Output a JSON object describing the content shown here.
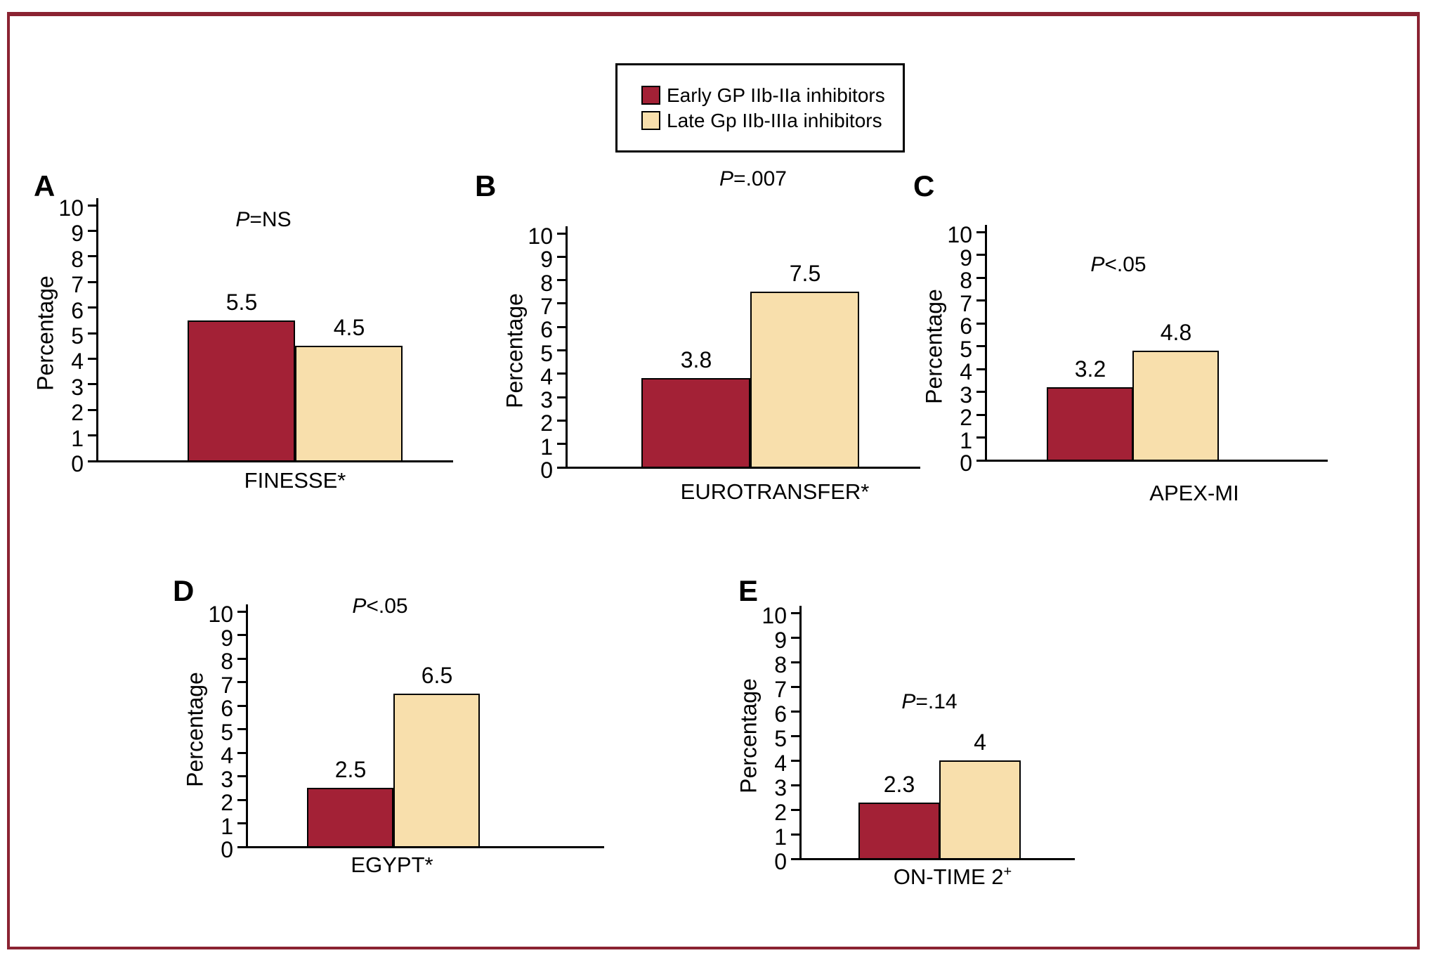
{
  "figure": {
    "frame_color": "#8B2332",
    "background": "#FFFFFF",
    "ylabel": "Percentage"
  },
  "legend": {
    "position": "top-center",
    "items": [
      {
        "label": "Early GP IIb-IIa inhibitors",
        "color": "#A32136",
        "series": "early"
      },
      {
        "label": "Late Gp IIb-IIIa inhibitors",
        "color": "#F8DFAC",
        "series": "late"
      }
    ]
  },
  "chart_data": [
    {
      "type": "bar",
      "panel": "A",
      "p_value_label": "P=NS",
      "categories": [
        "Early GP IIb-IIa inhibitors",
        "Late Gp IIb-IIIa inhibitors"
      ],
      "values": [
        5.5,
        4.5
      ],
      "bar_labels": [
        "5.5",
        "4.5"
      ],
      "xlabel": "FINESSE*",
      "xlabel_sup": "",
      "ylabel": "Percentage",
      "ylim": [
        0,
        10
      ],
      "yticks": [
        0,
        1,
        2,
        3,
        4,
        5,
        6,
        7,
        8,
        9,
        10
      ],
      "grid": false,
      "legend_position": "none"
    },
    {
      "type": "bar",
      "panel": "B",
      "p_value_label": "P=.007",
      "categories": [
        "Early GP IIb-IIa inhibitors",
        "Late Gp IIb-IIIa inhibitors"
      ],
      "values": [
        3.8,
        7.5
      ],
      "bar_labels": [
        "3.8",
        "7.5"
      ],
      "xlabel": "EUROTRANSFER*",
      "xlabel_sup": "",
      "ylabel": "Percentage",
      "ylim": [
        0,
        10
      ],
      "yticks": [
        0,
        1,
        2,
        3,
        4,
        5,
        6,
        7,
        8,
        9,
        10
      ],
      "grid": false,
      "legend_position": "none"
    },
    {
      "type": "bar",
      "panel": "C",
      "p_value_label": "P<.05",
      "categories": [
        "Early GP IIb-IIa inhibitors",
        "Late Gp IIb-IIIa inhibitors"
      ],
      "values": [
        3.2,
        4.8
      ],
      "bar_labels": [
        "3.2",
        "4.8"
      ],
      "xlabel": "APEX-MI",
      "xlabel_sup": "",
      "ylabel": "Percentage",
      "ylim": [
        0,
        10
      ],
      "yticks": [
        0,
        1,
        2,
        3,
        4,
        5,
        6,
        7,
        8,
        9,
        10
      ],
      "grid": false,
      "legend_position": "none"
    },
    {
      "type": "bar",
      "panel": "D",
      "p_value_label": "P<.05",
      "categories": [
        "Early GP IIb-IIa inhibitors",
        "Late Gp IIb-IIIa inhibitors"
      ],
      "values": [
        2.5,
        6.5
      ],
      "bar_labels": [
        "2.5",
        "6.5"
      ],
      "xlabel": "EGYPT*",
      "xlabel_sup": "",
      "ylabel": "Percentage",
      "ylim": [
        0,
        10
      ],
      "yticks": [
        0,
        1,
        2,
        3,
        4,
        5,
        6,
        7,
        8,
        9,
        10
      ],
      "grid": false,
      "legend_position": "none"
    },
    {
      "type": "bar",
      "panel": "E",
      "p_value_label": "P=.14",
      "categories": [
        "Early GP IIb-IIa inhibitors",
        "Late Gp IIb-IIIa inhibitors"
      ],
      "values": [
        2.3,
        4
      ],
      "bar_labels": [
        "2.3",
        "4"
      ],
      "xlabel": "ON-TIME 2",
      "xlabel_sup": "+",
      "ylabel": "Percentage",
      "ylim": [
        0,
        10
      ],
      "yticks": [
        0,
        1,
        2,
        3,
        4,
        5,
        6,
        7,
        8,
        9,
        10
      ],
      "grid": false,
      "legend_position": "none"
    }
  ]
}
